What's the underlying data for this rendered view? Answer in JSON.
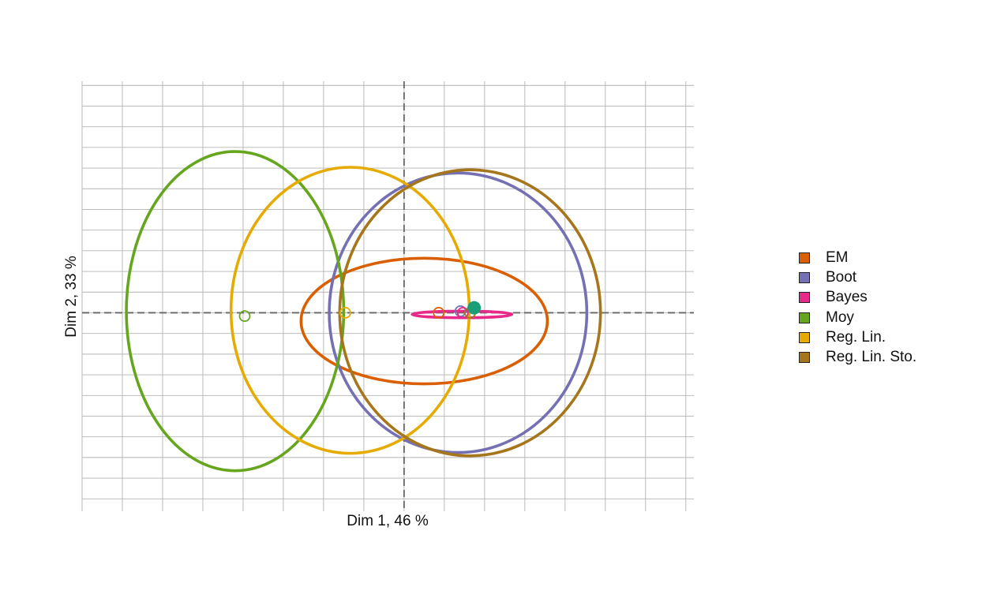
{
  "chart_data": {
    "type": "scatter",
    "title": "",
    "xlabel": "Dim 1, 46 %",
    "ylabel": "Dim 2, 33 %",
    "xlim": [
      -4.0,
      3.6
    ],
    "ylim": [
      -2.4,
      2.8
    ],
    "grid": true,
    "legend_position": "right",
    "reference_point": {
      "x": 0.87,
      "y": 0.06,
      "color": "#1b9e77"
    },
    "series": [
      {
        "name": "EM",
        "color": "#d95f02",
        "center": {
          "x": 0.43,
          "y": 0.0
        },
        "ellipse": {
          "cx": 0.25,
          "cy": -0.1,
          "rx": 1.53,
          "ry": 0.76,
          "rotation": 0
        }
      },
      {
        "name": "Boot",
        "color": "#7570b3",
        "center": {
          "x": 0.7,
          "y": 0.02
        },
        "ellipse": {
          "cx": 0.67,
          "cy": 0.0,
          "rx": 1.6,
          "ry": 1.69,
          "rotation": 0
        }
      },
      {
        "name": "Bayes",
        "color": "#e7298a",
        "center": {
          "x": 0.73,
          "y": 0.0
        },
        "ellipse": {
          "cx": 0.72,
          "cy": -0.02,
          "rx": 0.62,
          "ry": 0.04,
          "rotation": 0
        }
      },
      {
        "name": "Moy",
        "color": "#66a61e",
        "center": {
          "x": -1.98,
          "y": -0.04
        },
        "ellipse": {
          "cx": -2.1,
          "cy": 0.02,
          "rx": 1.35,
          "ry": 1.93,
          "rotation": 0
        }
      },
      {
        "name": "Reg. Lin.",
        "color": "#e6ab02",
        "center": {
          "x": -0.73,
          "y": 0.0
        },
        "ellipse": {
          "cx": -0.67,
          "cy": 0.03,
          "rx": 1.48,
          "ry": 1.73,
          "rotation": 0
        }
      },
      {
        "name": "Reg. Lin. Sto.",
        "color": "#a6761d",
        "center": {
          "x": 0.82,
          "y": 0.0
        },
        "ellipse": {
          "cx": 0.82,
          "cy": 0.0,
          "rx": 1.62,
          "ry": 1.73,
          "rotation": 0
        }
      }
    ]
  }
}
